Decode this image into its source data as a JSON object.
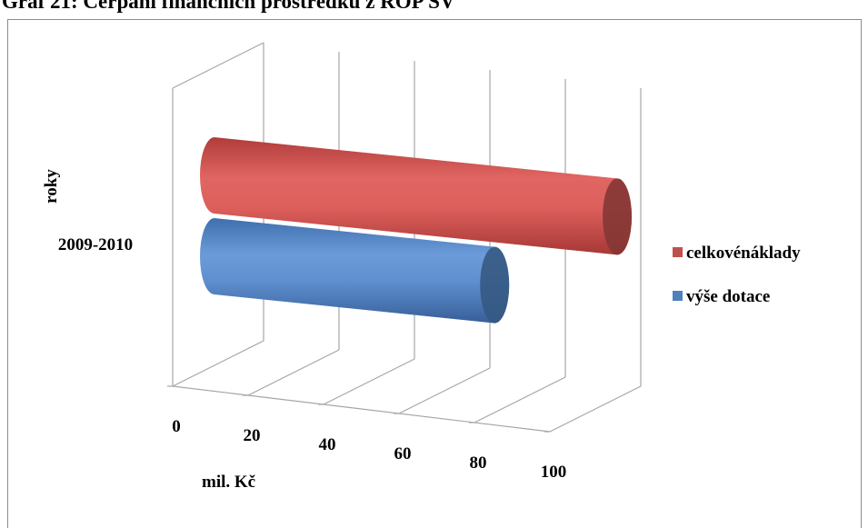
{
  "page": {
    "title": "Graf 21: Čerpání finančních prostředků z ROP SV"
  },
  "chart_data": {
    "type": "bar",
    "orientation": "horizontal",
    "style": "3d-cylinder",
    "categories": [
      "2009-2010"
    ],
    "series": [
      {
        "name": "celkovénáklady",
        "values": [
          97
        ],
        "color": "#c0504d"
      },
      {
        "name": "výše dotace",
        "values": [
          68
        ],
        "color": "#4f81bd"
      }
    ],
    "xlabel": "mil. Kč",
    "ylabel": "roky",
    "xlim": [
      0,
      100
    ],
    "xticks": [
      "0",
      "20",
      "40",
      "60",
      "80",
      "100"
    ],
    "grid": true,
    "legend_position": "right"
  }
}
